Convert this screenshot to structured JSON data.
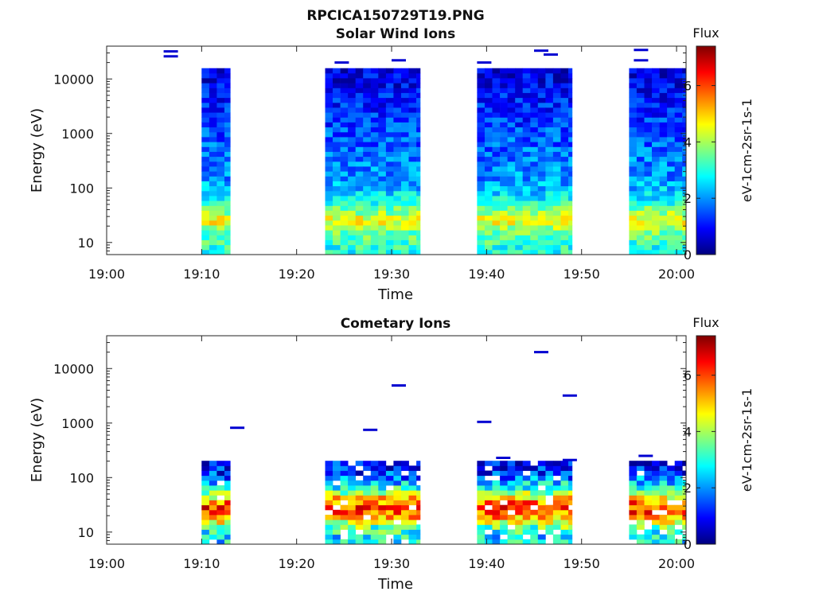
{
  "figure_title": "RPCICA150729T19.PNG",
  "colorbar": {
    "title": "Flux",
    "label": "eV-1cm-2sr-1s-1",
    "ticks": [
      "0",
      "2",
      "4",
      "6"
    ],
    "range": [
      0,
      7.4
    ],
    "colormap": "jet"
  },
  "chart_data": [
    {
      "type": "heatmap",
      "title": "Solar Wind Ions",
      "xlabel": "Time",
      "ylabel": "Energy (eV)",
      "xlim": [
        "19:00",
        "20:01"
      ],
      "ylim": [
        6,
        40000
      ],
      "yscale": "log",
      "x_ticks": [
        "19:00",
        "19:10",
        "19:20",
        "19:30",
        "19:40",
        "19:50",
        "20:00"
      ],
      "y_ticks": [
        "10",
        "100",
        "1000",
        "10000"
      ],
      "data_intervals": [
        [
          "19:10",
          "19:13"
        ],
        [
          "19:23",
          "19:33"
        ],
        [
          "19:39",
          "19:49"
        ],
        [
          "19:55",
          "20:01"
        ]
      ],
      "profile": [
        {
          "energy_eV": 8,
          "flux": 3.0
        },
        {
          "energy_eV": 15,
          "flux": 3.6
        },
        {
          "energy_eV": 25,
          "flux": 4.6
        },
        {
          "energy_eV": 40,
          "flux": 3.6
        },
        {
          "energy_eV": 70,
          "flux": 2.6
        },
        {
          "energy_eV": 150,
          "flux": 2.0
        },
        {
          "energy_eV": 500,
          "flux": 1.7
        },
        {
          "energy_eV": 2000,
          "flux": 1.3
        },
        {
          "energy_eV": 10000,
          "flux": 0.8
        },
        {
          "energy_eV": 30000,
          "flux": 0.6
        }
      ]
    },
    {
      "type": "heatmap",
      "title": "Cometary Ions",
      "xlabel": "Time",
      "ylabel": "Energy (eV)",
      "xlim": [
        "19:00",
        "20:01"
      ],
      "ylim": [
        6,
        40000
      ],
      "yscale": "log",
      "x_ticks": [
        "19:00",
        "19:10",
        "19:20",
        "19:30",
        "19:40",
        "19:50",
        "20:00"
      ],
      "y_ticks": [
        "10",
        "100",
        "1000",
        "10000"
      ],
      "data_intervals": [
        [
          "19:10",
          "19:13"
        ],
        [
          "19:23",
          "19:33"
        ],
        [
          "19:39",
          "19:49"
        ],
        [
          "19:55",
          "20:01"
        ]
      ],
      "profile": [
        {
          "energy_eV": 8,
          "flux": 2.6
        },
        {
          "energy_eV": 12,
          "flux": 3.4
        },
        {
          "energy_eV": 20,
          "flux": 5.6
        },
        {
          "energy_eV": 30,
          "flux": 6.2
        },
        {
          "energy_eV": 45,
          "flux": 4.6
        },
        {
          "energy_eV": 70,
          "flux": 2.8
        },
        {
          "energy_eV": 110,
          "flux": 1.4
        },
        {
          "energy_eV": 180,
          "flux": 0.9
        }
      ],
      "sparse_points": [
        {
          "time": "19:13",
          "energy_eV": 820
        },
        {
          "time": "19:27",
          "energy_eV": 750
        },
        {
          "time": "19:30",
          "energy_eV": 4900
        },
        {
          "time": "19:39",
          "energy_eV": 1050
        },
        {
          "time": "19:41",
          "energy_eV": 230
        },
        {
          "time": "19:45",
          "energy_eV": 20000
        },
        {
          "time": "19:48",
          "energy_eV": 3200
        },
        {
          "time": "19:48",
          "energy_eV": 210
        },
        {
          "time": "19:56",
          "energy_eV": 250
        }
      ]
    }
  ]
}
